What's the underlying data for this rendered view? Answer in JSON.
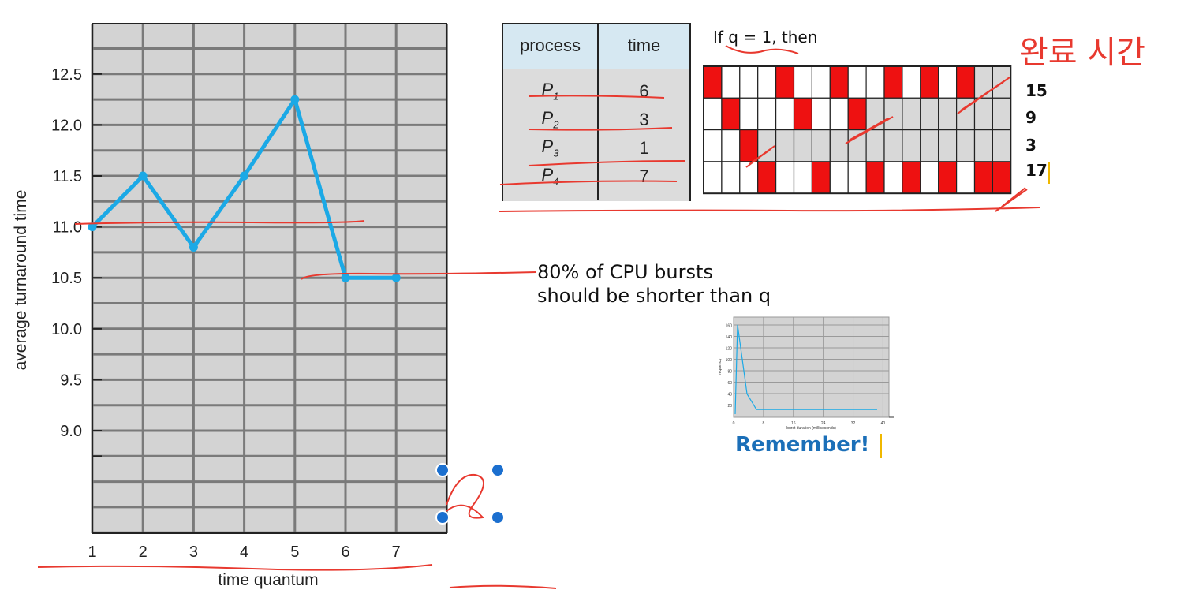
{
  "chart_data": {
    "type": "line",
    "xlabel": "time quantum",
    "ylabel": "average turnaround time",
    "x": [
      1,
      2,
      3,
      4,
      5,
      6,
      7
    ],
    "x_ticks": [
      "1",
      "2",
      "3",
      "4",
      "5",
      "6",
      "7"
    ],
    "y_ticks": [
      "9.0",
      "9.5",
      "10.0",
      "10.5",
      "11.0",
      "11.5",
      "12.0",
      "12.5"
    ],
    "series": [
      {
        "values": [
          11.0,
          11.5,
          10.8,
          11.5,
          12.25,
          10.5,
          10.5
        ]
      }
    ],
    "ylim": [
      8.0,
      13.0
    ],
    "xlim": [
      1,
      8
    ],
    "grid": true,
    "line_color": "#1ba9e6",
    "plot_background": "#d3d3d3"
  },
  "process_table": {
    "headers": [
      "process",
      "time"
    ],
    "rows": [
      {
        "process": "P",
        "sub": "1",
        "time": "6"
      },
      {
        "process": "P",
        "sub": "2",
        "time": "3"
      },
      {
        "process": "P",
        "sub": "3",
        "time": "1"
      },
      {
        "process": "P",
        "sub": "4",
        "time": "7"
      }
    ]
  },
  "gantt": {
    "title": "If q = 1, then",
    "completion_label": "완료 시간",
    "completion_times": [
      "15",
      "9",
      "3",
      "17"
    ],
    "columns": 17,
    "rows": [
      [
        1,
        0,
        0,
        0,
        1,
        0,
        0,
        1,
        0,
        0,
        1,
        0,
        1,
        0,
        1,
        0,
        0
      ],
      [
        0,
        1,
        0,
        0,
        0,
        1,
        0,
        0,
        1,
        0,
        0,
        0,
        0,
        0,
        0,
        0,
        0
      ],
      [
        0,
        0,
        1,
        0,
        0,
        0,
        0,
        0,
        0,
        0,
        0,
        0,
        0,
        0,
        0,
        0,
        0
      ],
      [
        0,
        0,
        0,
        1,
        0,
        0,
        1,
        0,
        0,
        1,
        0,
        1,
        0,
        1,
        0,
        1,
        1
      ]
    ],
    "row_done": [
      15,
      9,
      3,
      17
    ],
    "active_color": "#ee1111"
  },
  "note": {
    "line1": "80% of CPU bursts",
    "line2": "should be shorter than q"
  },
  "thumbnail": {
    "remember_label": "Remember!",
    "values": [
      0,
      155,
      35,
      8,
      8,
      8,
      8,
      8
    ],
    "x_ticks": [
      "0",
      "8",
      "16",
      "24",
      "32",
      "40"
    ],
    "y_ticks": [
      "160",
      "140",
      "120",
      "100",
      "80",
      "60",
      "40",
      "20"
    ],
    "xlabel": "burst duration (milliseconds)",
    "ylabel": "frequency"
  },
  "colors": {
    "annotation_red": "#e8392f",
    "handle_blue": "#1b6fcf"
  }
}
